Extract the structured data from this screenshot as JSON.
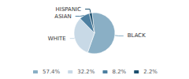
{
  "chart_data": {
    "type": "pie",
    "categories": [
      "BLACK",
      "WHITE",
      "ASIAN",
      "HISPANIC"
    ],
    "values": [
      57.4,
      32.2,
      8.2,
      2.2
    ],
    "value_labels": [
      "57.4%",
      "32.2%",
      "8.2%",
      "2.2%"
    ],
    "colors": [
      "#8aafc5",
      "#c8d9e6",
      "#4d7fa0",
      "#1c4f6e"
    ],
    "legend": "bottom"
  }
}
